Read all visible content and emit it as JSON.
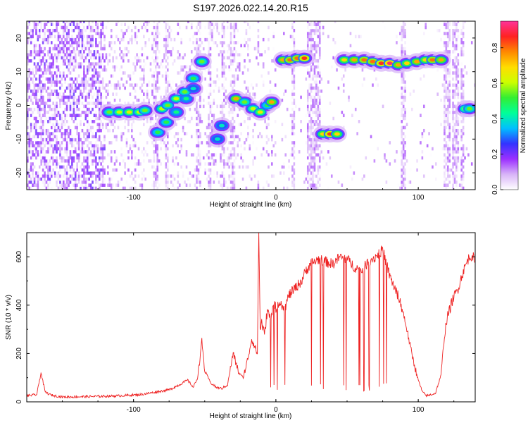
{
  "title": "S197.2026.022.14.20.R15",
  "chart_data": [
    {
      "type": "heatmap",
      "title": "S197.2026.022.14.20.R15",
      "xlabel": "Height of straight line (km)",
      "ylabel": "Frequency (Hz)",
      "xlim": [
        -175,
        140
      ],
      "ylim": [
        -25,
        25
      ],
      "xticks": [
        -100,
        0,
        100
      ],
      "yticks": [
        -20,
        -10,
        0,
        10,
        20
      ],
      "colorbar": {
        "label": "Normalized spectral amplitude",
        "range": [
          0,
          0.95
        ],
        "ticks": [
          "0.0",
          "0.2",
          "0.4",
          "0.6",
          "0.8"
        ],
        "tick_values": [
          0,
          0.2,
          0.4,
          0.6,
          0.8
        ],
        "colors": [
          "#ffffff",
          "#d8b4f8",
          "#9b30ff",
          "#3333ff",
          "#00bfff",
          "#00ff99",
          "#33ee33",
          "#ccff00",
          "#ffdd00",
          "#ff8800",
          "#ff2222",
          "#ff3399"
        ]
      },
      "ridge": [
        {
          "x": -117,
          "y": -2,
          "v": 0.55
        },
        {
          "x": -110,
          "y": -2,
          "v": 0.6
        },
        {
          "x": -103,
          "y": -2,
          "v": 0.65
        },
        {
          "x": -96,
          "y": -2,
          "v": 0.6
        },
        {
          "x": -92,
          "y": -1.5,
          "v": 0.55
        },
        {
          "x": -80,
          "y": -1,
          "v": 0.6
        },
        {
          "x": -76,
          "y": 0,
          "v": 0.55
        },
        {
          "x": -70,
          "y": 2,
          "v": 0.6
        },
        {
          "x": -64,
          "y": 4,
          "v": 0.55
        },
        {
          "x": -58,
          "y": 8,
          "v": 0.5
        },
        {
          "x": -52,
          "y": 13,
          "v": 0.55
        },
        {
          "x": -83,
          "y": -8,
          "v": 0.5
        },
        {
          "x": -77,
          "y": -5,
          "v": 0.5
        },
        {
          "x": -70,
          "y": -2,
          "v": 0.45
        },
        {
          "x": -63,
          "y": 2,
          "v": 0.45
        },
        {
          "x": -58,
          "y": 5,
          "v": 0.4
        },
        {
          "x": -41,
          "y": -10,
          "v": 0.4
        },
        {
          "x": -38,
          "y": -6,
          "v": 0.4
        },
        {
          "x": -28,
          "y": 2,
          "v": 0.75
        },
        {
          "x": -22,
          "y": 1,
          "v": 0.55
        },
        {
          "x": -16,
          "y": -1,
          "v": 0.6
        },
        {
          "x": -11,
          "y": -2,
          "v": 0.65
        },
        {
          "x": -6,
          "y": 0,
          "v": 0.5
        },
        {
          "x": -3,
          "y": 1,
          "v": 0.75
        },
        {
          "x": 5,
          "y": 13.5,
          "v": 0.75
        },
        {
          "x": 10,
          "y": 13.5,
          "v": 0.8
        },
        {
          "x": 15,
          "y": 14,
          "v": 0.8
        },
        {
          "x": 20,
          "y": 14,
          "v": 0.85
        },
        {
          "x": 33,
          "y": -8.5,
          "v": 0.7
        },
        {
          "x": 38,
          "y": -8.5,
          "v": 0.85
        },
        {
          "x": 43,
          "y": -8.5,
          "v": 0.7
        },
        {
          "x": 48,
          "y": 13.5,
          "v": 0.7
        },
        {
          "x": 55,
          "y": 13.5,
          "v": 0.75
        },
        {
          "x": 62,
          "y": 13.5,
          "v": 0.8
        },
        {
          "x": 68,
          "y": 13,
          "v": 0.8
        },
        {
          "x": 74,
          "y": 12.5,
          "v": 0.85
        },
        {
          "x": 80,
          "y": 12.5,
          "v": 0.92
        },
        {
          "x": 86,
          "y": 12,
          "v": 0.75
        },
        {
          "x": 92,
          "y": 12.5,
          "v": 0.7
        },
        {
          "x": 99,
          "y": 13,
          "v": 0.75
        },
        {
          "x": 105,
          "y": 13.5,
          "v": 0.7
        },
        {
          "x": 110,
          "y": 13.5,
          "v": 0.8
        },
        {
          "x": 116,
          "y": 13.5,
          "v": 0.75
        },
        {
          "x": 133,
          "y": -1,
          "v": 0.6
        },
        {
          "x": 136,
          "y": -1,
          "v": 0.55
        }
      ]
    },
    {
      "type": "line",
      "xlabel": "Height of straight line (km)",
      "ylabel": "SNR (10 * v/v)",
      "xlim": [
        -175,
        140
      ],
      "ylim": [
        0,
        700
      ],
      "xticks": [
        -100,
        0,
        100
      ],
      "yticks": [
        0,
        200,
        400,
        600
      ],
      "series": [
        {
          "name": "SNR",
          "color": "#ee2222",
          "x": [
            -175,
            -168,
            -165,
            -162,
            -158,
            -150,
            -130,
            -110,
            -95,
            -85,
            -75,
            -68,
            -62,
            -58,
            -55,
            -52,
            -50,
            -46,
            -42,
            -38,
            -34,
            -30,
            -26,
            -23,
            -20,
            -17,
            -15,
            -13,
            -12,
            -11,
            -10,
            -8,
            -6,
            -4,
            -2,
            0,
            3,
            6,
            9,
            12,
            15,
            18,
            21,
            24,
            27,
            30,
            35,
            40,
            45,
            50,
            55,
            60,
            65,
            70,
            75,
            80,
            85,
            88,
            91,
            94,
            97,
            100,
            103,
            106,
            109,
            112,
            116,
            118,
            120,
            124,
            128,
            131,
            133,
            135,
            138,
            140
          ],
          "values": [
            25,
            30,
            120,
            40,
            28,
            20,
            22,
            25,
            30,
            40,
            50,
            70,
            90,
            60,
            100,
            250,
            130,
            80,
            60,
            55,
            70,
            200,
            120,
            100,
            170,
            260,
            230,
            200,
            700,
            300,
            330,
            280,
            380,
            340,
            400,
            390,
            420,
            380,
            440,
            460,
            480,
            500,
            540,
            570,
            580,
            590,
            580,
            570,
            600,
            590,
            560,
            540,
            580,
            600,
            630,
            520,
            450,
            400,
            330,
            240,
            160,
            90,
            40,
            25,
            30,
            35,
            110,
            250,
            340,
            420,
            470,
            530,
            560,
            590,
            610,
            570
          ]
        }
      ]
    }
  ]
}
